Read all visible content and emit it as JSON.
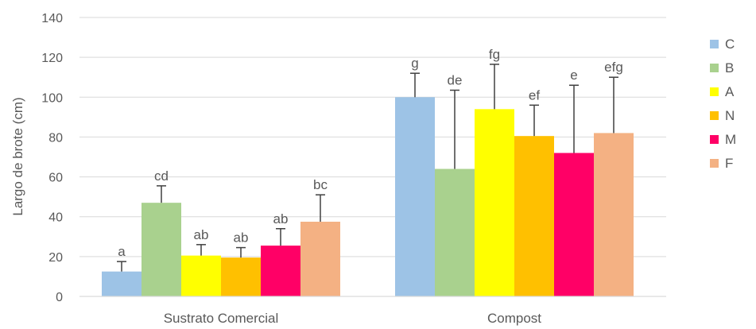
{
  "chart_data": {
    "type": "bar",
    "title": "",
    "xlabel": "",
    "ylabel": "Largo de brote (cm)",
    "ylim": [
      0,
      140
    ],
    "yticks": [
      0,
      20,
      40,
      60,
      80,
      100,
      120,
      140
    ],
    "grid": true,
    "legend_position": "right",
    "categories": [
      "Sustrato Comercial",
      "Compost"
    ],
    "series": [
      {
        "name": "C",
        "color": "#9dc3e6",
        "values": [
          12.5,
          100
        ],
        "errors": [
          5,
          12
        ],
        "letters": [
          "a",
          "g"
        ]
      },
      {
        "name": "B",
        "color": "#a9d18e",
        "values": [
          47,
          64
        ],
        "errors": [
          8.5,
          39.5
        ],
        "letters": [
          "cd",
          "de"
        ]
      },
      {
        "name": "A",
        "color": "#ffff00",
        "values": [
          20.5,
          94
        ],
        "errors": [
          5.5,
          22.5
        ],
        "letters": [
          "ab",
          "fg"
        ]
      },
      {
        "name": "N",
        "color": "#ffc000",
        "values": [
          19.5,
          80.5
        ],
        "errors": [
          5,
          15.5
        ],
        "letters": [
          "ab",
          "ef"
        ]
      },
      {
        "name": "M",
        "color": "#ff0066",
        "values": [
          25.5,
          72
        ],
        "errors": [
          8.5,
          34
        ],
        "letters": [
          "ab",
          "e"
        ]
      },
      {
        "name": "F",
        "color": "#f4b183",
        "values": [
          37.5,
          82
        ],
        "errors": [
          13.5,
          28
        ],
        "letters": [
          "bc",
          "efg"
        ]
      }
    ]
  }
}
